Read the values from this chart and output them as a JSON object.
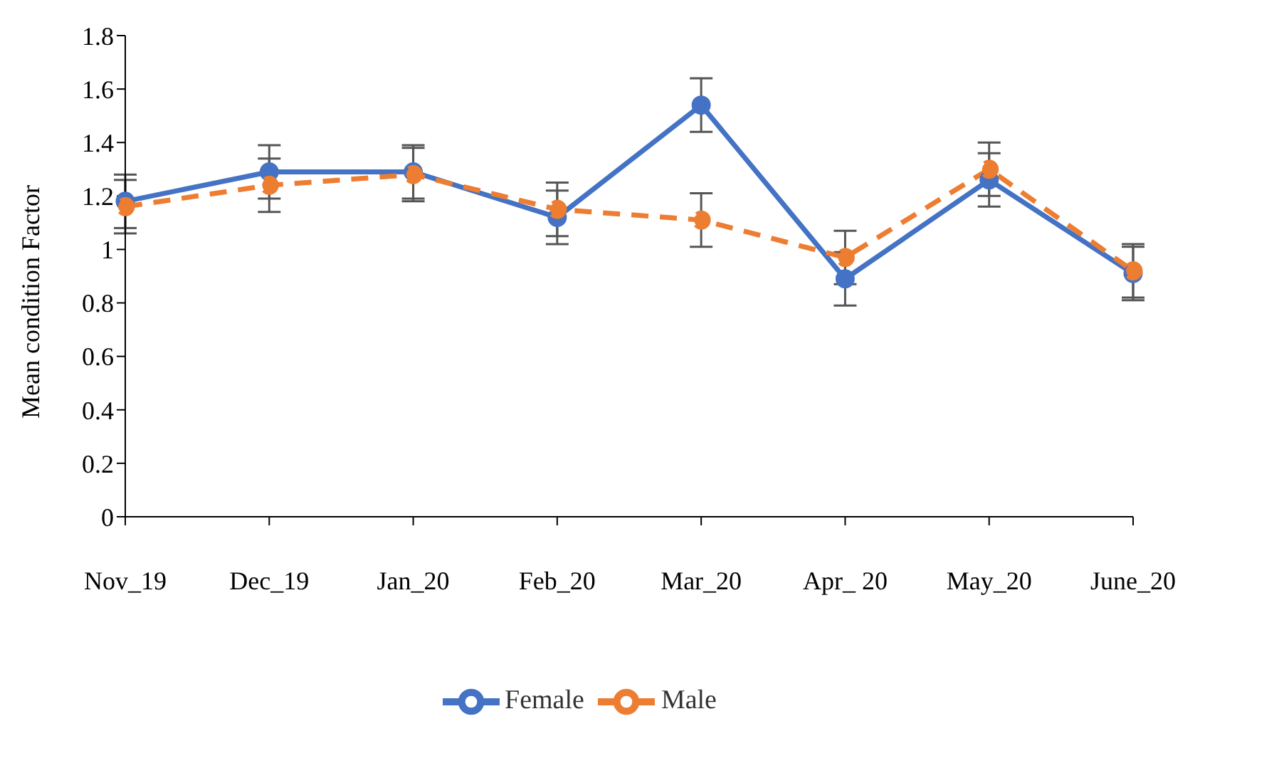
{
  "chart_data": {
    "type": "line",
    "ylabel": "Mean condition Factor",
    "categories": [
      "Nov_19",
      "Dec_19",
      "Jan_20",
      "Feb_20",
      "Mar_20",
      "Apr_ 20",
      "May_20",
      "June_20"
    ],
    "series": [
      {
        "name": "Female",
        "color": "#4472c4",
        "line_style": "solid",
        "values": [
          1.18,
          1.29,
          1.29,
          1.12,
          1.54,
          0.89,
          1.26,
          0.91
        ],
        "errors": [
          0.1,
          0.1,
          0.1,
          0.1,
          0.1,
          0.1,
          0.1,
          0.1
        ]
      },
      {
        "name": "Male",
        "color": "#ed7d31",
        "line_style": "dashed",
        "values": [
          1.16,
          1.24,
          1.28,
          1.15,
          1.11,
          0.97,
          1.3,
          0.92
        ],
        "errors": [
          0.1,
          0.1,
          0.1,
          0.1,
          0.1,
          0.1,
          0.1,
          0.1
        ]
      }
    ],
    "ylim": [
      0,
      1.8
    ],
    "yticks": [
      0,
      0.2,
      0.4,
      0.6,
      0.8,
      1,
      1.2,
      1.4,
      1.6,
      1.8
    ],
    "grid": false,
    "legend": "bottom",
    "marker": "circle"
  }
}
